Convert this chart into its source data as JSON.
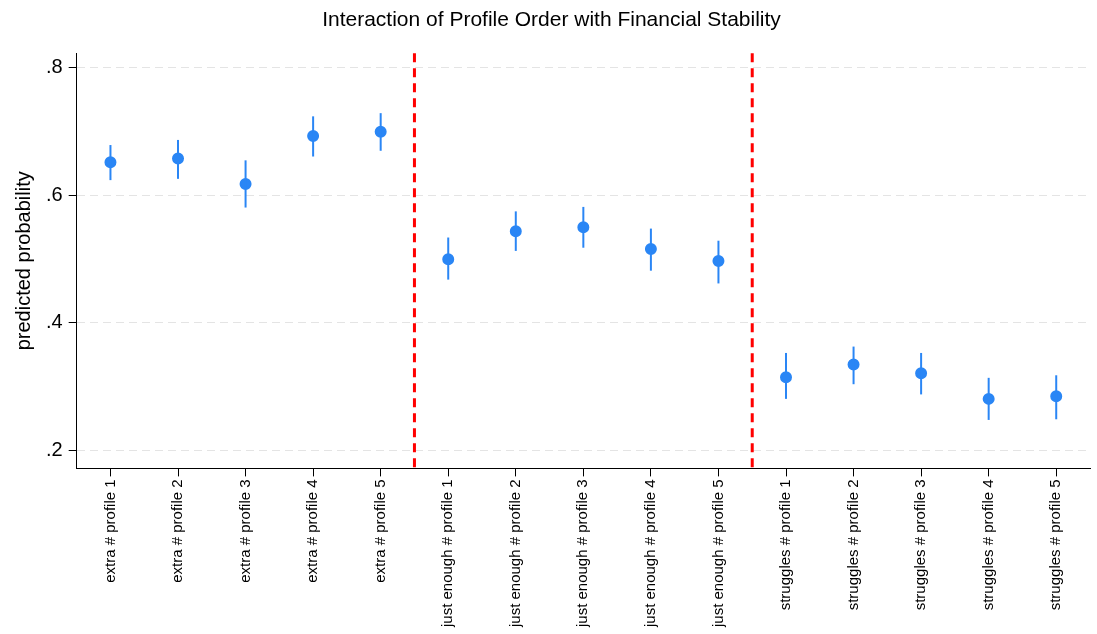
{
  "chart_data": {
    "type": "scatter",
    "title": "Interaction of Profile Order with Financial Stability",
    "ylabel": "predicted probability",
    "categories": [
      "extra # profile 1",
      "extra # profile 2",
      "extra # profile 3",
      "extra # profile 4",
      "extra # profile 5",
      "just enough # profile 1",
      "just enough # profile 2",
      "just enough # profile 3",
      "just enough # profile 4",
      "just enough # profile 5",
      "struggles # profile 1",
      "struggles # profile 2",
      "struggles # profile 3",
      "struggles # profile 4",
      "struggles # profile 5"
    ],
    "series": [
      {
        "color": "#2a86f5",
        "values": [
          0.652,
          0.658,
          0.618,
          0.693,
          0.7,
          0.5,
          0.544,
          0.55,
          0.516,
          0.497,
          0.315,
          0.335,
          0.321,
          0.281,
          0.285
        ],
        "errors": [
          [
            0.624,
            0.679
          ],
          [
            0.626,
            0.687
          ],
          [
            0.581,
            0.655
          ],
          [
            0.661,
            0.724
          ],
          [
            0.67,
            0.729
          ],
          [
            0.468,
            0.534
          ],
          [
            0.513,
            0.575
          ],
          [
            0.518,
            0.582
          ],
          [
            0.482,
            0.548
          ],
          [
            0.462,
            0.529
          ],
          [
            0.281,
            0.353
          ],
          [
            0.304,
            0.363
          ],
          [
            0.288,
            0.353
          ],
          [
            0.248,
            0.314
          ],
          [
            0.249,
            0.318
          ]
        ]
      }
    ],
    "ylim": [
      0.172,
      0.823
    ],
    "yticks": [
      {
        "value": 0.2,
        "label": ".2"
      },
      {
        "value": 0.4,
        "label": ".4"
      },
      {
        "value": 0.6,
        "label": ".6"
      },
      {
        "value": 0.8,
        "label": ".8"
      }
    ],
    "grid": "y",
    "legend": false,
    "marker": "circle"
  }
}
